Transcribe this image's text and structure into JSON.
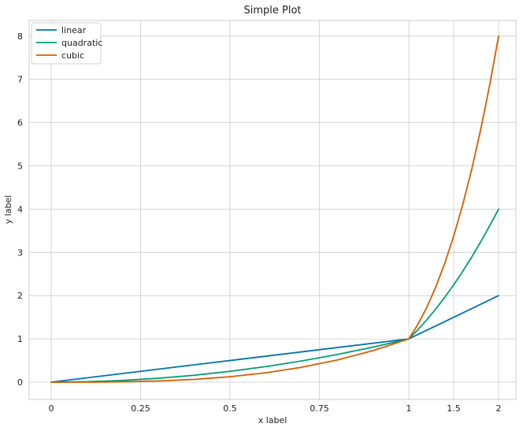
{
  "chart_data": {
    "type": "line",
    "title": "Simple Plot",
    "xlabel": "x label",
    "ylabel": "y label",
    "x_ticks": [
      {
        "value": 0,
        "label": "0"
      },
      {
        "value": 0.25,
        "label": "0.25"
      },
      {
        "value": 0.5,
        "label": "0.5"
      },
      {
        "value": 0.75,
        "label": "0.75"
      },
      {
        "value": 1,
        "label": "1"
      },
      {
        "value": 1.5,
        "label": "1.5"
      },
      {
        "value": 2,
        "label": "2"
      }
    ],
    "y_ticks": [
      0,
      1,
      2,
      3,
      4,
      5,
      6,
      7,
      8
    ],
    "xlim": [
      -0.05,
      2.05
    ],
    "ylim": [
      -0.4,
      8.4
    ],
    "x_scale": "piecewise: 0-1 linear, 1-2 compressed",
    "grid": true,
    "legend_position": "top-left",
    "series": [
      {
        "name": "linear",
        "color": "#0072b2",
        "x": [
          0,
          0.1,
          0.2,
          0.3,
          0.4,
          0.5,
          0.6,
          0.7,
          0.8,
          0.9,
          1.0,
          1.1,
          1.2,
          1.3,
          1.4,
          1.5,
          1.6,
          1.7,
          1.8,
          1.9,
          2.0
        ],
        "y": [
          0,
          0.1,
          0.2,
          0.3,
          0.4,
          0.5,
          0.6,
          0.7,
          0.8,
          0.9,
          1.0,
          1.1,
          1.2,
          1.3,
          1.4,
          1.5,
          1.6,
          1.7,
          1.8,
          1.9,
          2.0
        ]
      },
      {
        "name": "quadratic",
        "color": "#009e73",
        "x": [
          0,
          0.1,
          0.2,
          0.3,
          0.4,
          0.5,
          0.6,
          0.7,
          0.8,
          0.9,
          1.0,
          1.1,
          1.2,
          1.3,
          1.4,
          1.5,
          1.6,
          1.7,
          1.8,
          1.9,
          2.0
        ],
        "y": [
          0,
          0.01,
          0.04,
          0.09,
          0.16,
          0.25,
          0.36,
          0.49,
          0.64,
          0.81,
          1.0,
          1.21,
          1.44,
          1.69,
          1.96,
          2.25,
          2.56,
          2.89,
          3.24,
          3.61,
          4.0
        ]
      },
      {
        "name": "cubic",
        "color": "#d55e00",
        "x": [
          0,
          0.1,
          0.2,
          0.3,
          0.4,
          0.5,
          0.6,
          0.7,
          0.8,
          0.9,
          1.0,
          1.1,
          1.2,
          1.3,
          1.4,
          1.5,
          1.6,
          1.7,
          1.8,
          1.9,
          2.0
        ],
        "y": [
          0,
          0.001,
          0.008,
          0.027,
          0.064,
          0.125,
          0.216,
          0.343,
          0.512,
          0.729,
          1.0,
          1.331,
          1.728,
          2.197,
          2.744,
          3.375,
          4.096,
          4.913,
          5.832,
          6.859,
          8.0
        ]
      }
    ]
  }
}
